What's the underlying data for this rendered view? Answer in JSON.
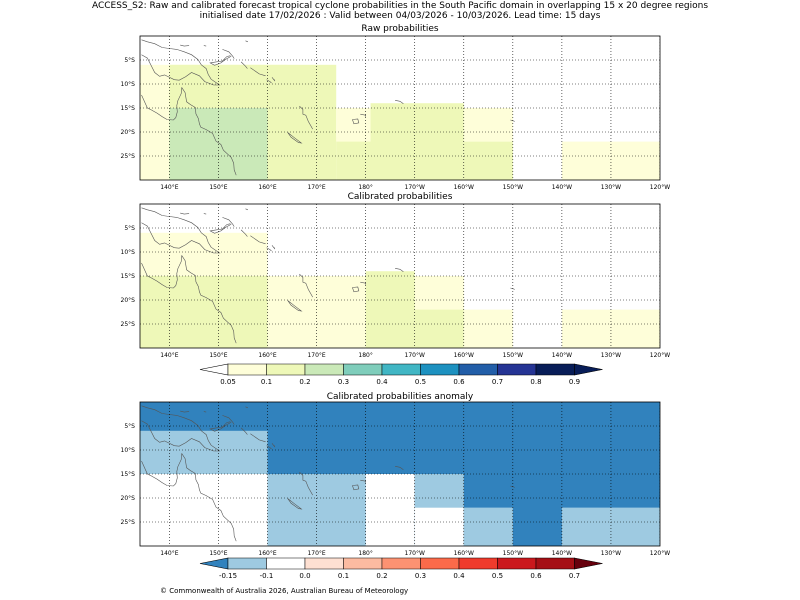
{
  "header": {
    "title_line1": "ACCESS_S2: Raw and calibrated forecast tropical cyclone probabilities in the South Pacific domain in overlapping 15 x 20 degree regions",
    "title_line2": "initialised date 17/02/2026 :  Valid between 04/03/2026 - 10/03/2026. Lead time: 15 days"
  },
  "axes": {
    "lon_ticks": [
      "140°E",
      "150°E",
      "160°E",
      "170°E",
      "180°",
      "170°W",
      "160°W",
      "150°W",
      "140°W",
      "130°W",
      "120°W"
    ],
    "lat_ticks": [
      "5°S",
      "10°S",
      "15°S",
      "20°S",
      "25°S"
    ]
  },
  "panels": [
    {
      "title": "Raw probabilities",
      "cells": [
        {
          "lon": [
            134,
            164
          ],
          "lat": [
            -6,
            -30
          ],
          "color": "#fefed9"
        },
        {
          "lon": [
            140,
            174
          ],
          "lat": [
            -6,
            -30
          ],
          "color": "#eef8b8"
        },
        {
          "lon": [
            140,
            160
          ],
          "lat": [
            -15,
            -30
          ],
          "color": "#cae9b8"
        },
        {
          "lon": [
            160,
            174
          ],
          "lat": [
            -21,
            -30
          ],
          "color": "#eef8b8"
        },
        {
          "lon": [
            174,
            200
          ],
          "lat": [
            -15,
            -30
          ],
          "color": "#fefed9"
        },
        {
          "lon": [
            174,
            182
          ],
          "lat": [
            -22,
            -30
          ],
          "color": "#eef8b8"
        },
        {
          "lon": [
            181,
            200
          ],
          "lat": [
            -14,
            -30
          ],
          "color": "#eef8b8"
        },
        {
          "lon": [
            200,
            210
          ],
          "lat": [
            -15,
            -22
          ],
          "color": "#fefed9"
        },
        {
          "lon": [
            200,
            210
          ],
          "lat": [
            -22,
            -30
          ],
          "color": "#eef8b8"
        },
        {
          "lon": [
            220,
            240
          ],
          "lat": [
            -22,
            -30
          ],
          "color": "#fefed9"
        }
      ]
    },
    {
      "title": "Calibrated probabilities",
      "cells": [
        {
          "lon": [
            134,
            160
          ],
          "lat": [
            -6,
            -30
          ],
          "color": "#fefed9"
        },
        {
          "lon": [
            134,
            160
          ],
          "lat": [
            -15,
            -30
          ],
          "color": "#eef8b8"
        },
        {
          "lon": [
            160,
            180
          ],
          "lat": [
            -15,
            -30
          ],
          "color": "#fefed9"
        },
        {
          "lon": [
            180,
            200
          ],
          "lat": [
            -15,
            -30
          ],
          "color": "#fefed9"
        },
        {
          "lon": [
            180,
            190
          ],
          "lat": [
            -14,
            -30
          ],
          "color": "#eef8b8"
        },
        {
          "lon": [
            190,
            200
          ],
          "lat": [
            -22,
            -30
          ],
          "color": "#eef8b8"
        },
        {
          "lon": [
            200,
            210
          ],
          "lat": [
            -22,
            -30
          ],
          "color": "#fefed9"
        },
        {
          "lon": [
            220,
            240
          ],
          "lat": [
            -22,
            -30
          ],
          "color": "#fefed9"
        }
      ]
    },
    {
      "title": "Calibrated probabilities anomaly",
      "cells": [
        {
          "lon": [
            134,
            240
          ],
          "lat": [
            0,
            -30
          ],
          "color": "#3182bd"
        },
        {
          "lon": [
            134,
            160
          ],
          "lat": [
            -6,
            -15
          ],
          "color": "#9ecae1"
        },
        {
          "lon": [
            134,
            160
          ],
          "lat": [
            -15,
            -30
          ],
          "color": "#ffffff"
        },
        {
          "lon": [
            160,
            180
          ],
          "lat": [
            -15,
            -30
          ],
          "color": "#9ecae1"
        },
        {
          "lon": [
            180,
            190
          ],
          "lat": [
            -15,
            -30
          ],
          "color": "#ffffff"
        },
        {
          "lon": [
            190,
            200
          ],
          "lat": [
            -15,
            -22
          ],
          "color": "#9ecae1"
        },
        {
          "lon": [
            190,
            200
          ],
          "lat": [
            -22,
            -30
          ],
          "color": "#ffffff"
        },
        {
          "lon": [
            200,
            210
          ],
          "lat": [
            -22,
            -30
          ],
          "color": "#9ecae1"
        },
        {
          "lon": [
            220,
            240
          ],
          "lat": [
            -22,
            -30
          ],
          "color": "#9ecae1"
        }
      ]
    }
  ],
  "colorbars": [
    {
      "name": "probability",
      "under_color": "#ffffff",
      "over_color": "#081d58",
      "colors": [
        "#fefed9",
        "#eef8b8",
        "#cae9b8",
        "#7fcdbb",
        "#41b6c4",
        "#1d91c0",
        "#225ea8",
        "#253494",
        "#081d58"
      ],
      "labels": [
        "0.05",
        "0.1",
        "0.2",
        "0.3",
        "0.4",
        "0.5",
        "0.6",
        "0.7",
        "0.8",
        "0.9"
      ]
    },
    {
      "name": "anomaly",
      "under_color": "#3182bd",
      "over_color": "#67000d",
      "colors": [
        "#9ecae1",
        "#ffffff",
        "#fee0d2",
        "#fcbba1",
        "#fc9272",
        "#fb6a4a",
        "#ef3b2c",
        "#cb181d",
        "#a50f15"
      ],
      "labels": [
        "-0.15",
        "-0.1",
        "0.0",
        "0.1",
        "0.2",
        "0.3",
        "0.4",
        "0.5",
        "0.6",
        "0.7"
      ]
    }
  ],
  "footer": {
    "copyright": "© Commonwealth of Australia 2026, Australian Bureau of Meteorology"
  }
}
